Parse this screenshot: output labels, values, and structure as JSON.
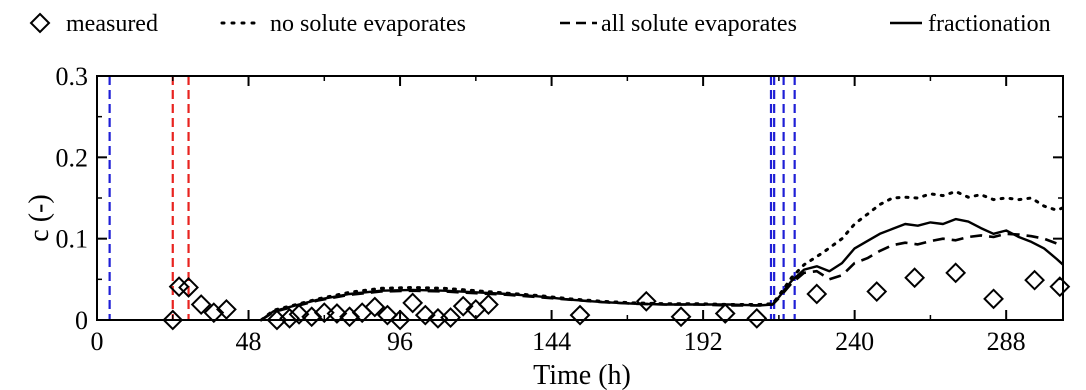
{
  "chart_data": {
    "type": "line",
    "title": "",
    "xlabel": "Time (h)",
    "ylabel": "c (-)",
    "xlim": [
      0,
      306
    ],
    "ylim": [
      0,
      0.3
    ],
    "xticks": [
      0,
      48,
      96,
      144,
      192,
      240,
      288
    ],
    "xtick_labels": [
      "0",
      "48",
      "96",
      "144",
      "192",
      "240",
      "288"
    ],
    "yticks": [
      0,
      0.1,
      0.2,
      0.3
    ],
    "ytick_labels": [
      "0",
      "0.1",
      "0.2",
      "0.3"
    ],
    "grid": false,
    "legend_position": "top",
    "legend": [
      {
        "label": "measured",
        "style": "diamond"
      },
      {
        "label": "no solute evaporates",
        "style": "dotted"
      },
      {
        "label": "all solute evaporates",
        "style": "dashed"
      },
      {
        "label": "fractionation",
        "style": "solid"
      }
    ],
    "vertical_lines": [
      {
        "x": 4,
        "color": "#1f1fd6"
      },
      {
        "x": 24,
        "color": "#e8231f"
      },
      {
        "x": 29,
        "color": "#e8231f"
      },
      {
        "x": 213.5,
        "color": "#1f1fd6"
      },
      {
        "x": 214.5,
        "color": "#1f1fd6"
      },
      {
        "x": 217.5,
        "color": "#1f1fd6"
      },
      {
        "x": 221,
        "color": "#1f1fd6"
      }
    ],
    "series": [
      {
        "name": "measured",
        "kind": "scatter",
        "x": [
          24,
          26,
          29,
          33,
          37,
          41,
          57,
          61,
          64,
          68,
          72,
          76,
          80,
          84,
          88,
          92,
          96,
          100,
          104,
          108,
          112,
          116,
          120,
          124,
          153,
          174,
          185,
          199,
          209,
          228,
          247,
          259,
          272,
          284,
          297,
          305
        ],
        "y": [
          0.0,
          0.041,
          0.04,
          0.019,
          0.009,
          0.013,
          0.0,
          0.002,
          0.007,
          0.004,
          0.009,
          0.008,
          0.004,
          0.009,
          0.016,
          0.006,
          0.0,
          0.021,
          0.006,
          0.002,
          0.003,
          0.017,
          0.013,
          0.019,
          0.006,
          0.023,
          0.004,
          0.008,
          0.002,
          0.032,
          0.035,
          0.052,
          0.058,
          0.026,
          0.049,
          0.041
        ]
      },
      {
        "name": "no solute evaporates",
        "kind": "line",
        "style": "dotted",
        "x": [
          52,
          56,
          62,
          70,
          80,
          90,
          100,
          110,
          120,
          130,
          140,
          150,
          160,
          170,
          180,
          190,
          200,
          210,
          214,
          216,
          220,
          224,
          230,
          236,
          240,
          244,
          248,
          252,
          256,
          260,
          264,
          268,
          272,
          276,
          280,
          284,
          288,
          292,
          296,
          300,
          304,
          306
        ],
        "y": [
          0.0,
          0.012,
          0.018,
          0.026,
          0.034,
          0.039,
          0.04,
          0.039,
          0.036,
          0.033,
          0.03,
          0.026,
          0.023,
          0.021,
          0.02,
          0.02,
          0.019,
          0.019,
          0.02,
          0.03,
          0.052,
          0.068,
          0.083,
          0.1,
          0.118,
          0.13,
          0.142,
          0.15,
          0.151,
          0.15,
          0.155,
          0.153,
          0.158,
          0.151,
          0.154,
          0.148,
          0.15,
          0.148,
          0.15,
          0.14,
          0.135,
          0.138
        ]
      },
      {
        "name": "all solute evaporates",
        "kind": "line",
        "style": "dashed",
        "x": [
          52,
          56,
          62,
          70,
          80,
          90,
          100,
          110,
          120,
          130,
          140,
          150,
          160,
          170,
          180,
          190,
          200,
          210,
          214,
          216,
          220,
          224,
          228,
          232,
          236,
          240,
          244,
          248,
          252,
          256,
          260,
          264,
          268,
          272,
          276,
          280,
          284,
          288,
          292,
          296,
          300,
          304,
          306
        ],
        "y": [
          0.0,
          0.01,
          0.016,
          0.024,
          0.031,
          0.035,
          0.036,
          0.035,
          0.033,
          0.031,
          0.028,
          0.025,
          0.022,
          0.02,
          0.019,
          0.019,
          0.018,
          0.018,
          0.019,
          0.027,
          0.045,
          0.058,
          0.06,
          0.05,
          0.055,
          0.07,
          0.076,
          0.085,
          0.092,
          0.095,
          0.093,
          0.097,
          0.1,
          0.098,
          0.102,
          0.104,
          0.102,
          0.106,
          0.105,
          0.103,
          0.1,
          0.094,
          0.09
        ]
      },
      {
        "name": "fractionation",
        "kind": "line",
        "style": "solid",
        "x": [
          52,
          56,
          62,
          70,
          80,
          90,
          100,
          110,
          120,
          130,
          140,
          150,
          160,
          170,
          180,
          190,
          200,
          210,
          214,
          216,
          220,
          224,
          228,
          232,
          236,
          240,
          244,
          248,
          252,
          256,
          260,
          264,
          268,
          272,
          276,
          280,
          284,
          288,
          292,
          296,
          300,
          304,
          306
        ],
        "y": [
          0.0,
          0.011,
          0.017,
          0.025,
          0.032,
          0.036,
          0.037,
          0.036,
          0.034,
          0.032,
          0.029,
          0.025,
          0.022,
          0.02,
          0.019,
          0.019,
          0.019,
          0.018,
          0.019,
          0.028,
          0.048,
          0.062,
          0.066,
          0.06,
          0.07,
          0.088,
          0.097,
          0.106,
          0.112,
          0.118,
          0.116,
          0.12,
          0.118,
          0.124,
          0.121,
          0.113,
          0.106,
          0.11,
          0.102,
          0.096,
          0.088,
          0.075,
          0.068
        ]
      }
    ]
  }
}
